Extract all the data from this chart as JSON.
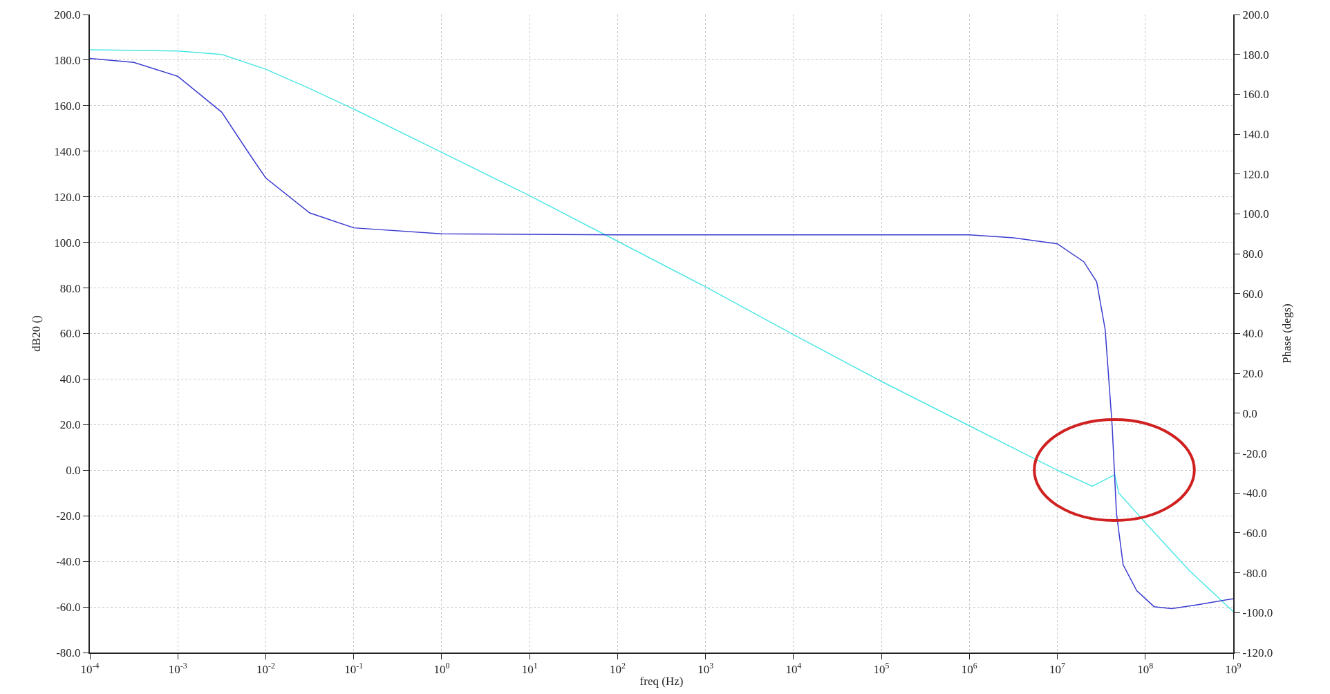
{
  "chart_data": {
    "type": "line",
    "xlabel": "freq (Hz)",
    "ylabel": "dB20 ()",
    "y2label": "Phase (degs)",
    "log": "x",
    "grid": true,
    "marker": "none",
    "line_style": "solid",
    "xlim": [
      0.0001,
      1000000000
    ],
    "xticks": [
      {
        "value": 0.0001,
        "label": "10$^{-4}$"
      },
      {
        "value": 0.001,
        "label": "10$^{-3}$"
      },
      {
        "value": 0.01,
        "label": "10$^{-2}$"
      },
      {
        "value": 0.1,
        "label": "10$^{-1}$"
      },
      {
        "value": 1,
        "label": "10$^{0}$"
      },
      {
        "value": 10,
        "label": "10$^{1}$"
      },
      {
        "value": 100,
        "label": "10$^{2}$"
      },
      {
        "value": 1000,
        "label": "10$^{3}$"
      },
      {
        "value": 10000,
        "label": "10$^{4}$"
      },
      {
        "value": 100000,
        "label": "10$^{5}$"
      },
      {
        "value": 1000000,
        "label": "10$^{6}$"
      },
      {
        "value": 10000000,
        "label": "10$^{7}$"
      },
      {
        "value": 100000000,
        "label": "10$^{8}$"
      },
      {
        "value": 1000000000,
        "label": "10$^{9}$"
      }
    ],
    "ylim": [
      -80,
      200
    ],
    "yticks": [
      {
        "value": 200,
        "label": "200.0"
      },
      {
        "value": 180,
        "label": "180.0"
      },
      {
        "value": 160,
        "label": "160.0"
      },
      {
        "value": 140,
        "label": "140.0"
      },
      {
        "value": 120,
        "label": "120.0"
      },
      {
        "value": 100,
        "label": "100.0"
      },
      {
        "value": 80,
        "label": "80.0"
      },
      {
        "value": 60,
        "label": "60.0"
      },
      {
        "value": 40,
        "label": "40.0"
      },
      {
        "value": 20,
        "label": "20.0"
      },
      {
        "value": 0,
        "label": "0.0"
      },
      {
        "value": -20,
        "label": "-20.0"
      },
      {
        "value": -40,
        "label": "-40.0"
      },
      {
        "value": -60,
        "label": "-60.0"
      },
      {
        "value": -80,
        "label": "-80.0"
      }
    ],
    "y2lim": [
      -120,
      200
    ],
    "y2ticks": [
      {
        "value": 200,
        "label": "200.0"
      },
      {
        "value": 180,
        "label": "180.0"
      },
      {
        "value": 160,
        "label": "160.0"
      },
      {
        "value": 140,
        "label": "140.0"
      },
      {
        "value": 120,
        "label": "120.0"
      },
      {
        "value": 100,
        "label": "100.0"
      },
      {
        "value": 80,
        "label": "80.0"
      },
      {
        "value": 60,
        "label": "60.0"
      },
      {
        "value": 40,
        "label": "40.0"
      },
      {
        "value": 20,
        "label": "20.0"
      },
      {
        "value": 0,
        "label": "0.0"
      },
      {
        "value": -20,
        "label": "-20.0"
      },
      {
        "value": -40,
        "label": "-40.0"
      },
      {
        "value": -60,
        "label": "-60.0"
      },
      {
        "value": -80,
        "label": "-80.0"
      },
      {
        "value": -100,
        "label": "-100.0"
      },
      {
        "value": -120,
        "label": "-120.0"
      }
    ],
    "series": [
      {
        "color": "#4ce6e6",
        "x": [
          0.0001,
          0.001,
          0.00316,
          0.01,
          0.0316,
          0.1,
          1,
          10,
          100,
          1000,
          10000.0,
          100000.0,
          1000000.0,
          10000000.0,
          25000000.0,
          40000000.0,
          45000000.0,
          50000000.0,
          100000000.0,
          316000000.0,
          1000000000.0
        ],
        "values": [
          184.5,
          184,
          182.5,
          176,
          167.5,
          158.5,
          139.5,
          120.5,
          100.5,
          80.5,
          59.5,
          39,
          19.5,
          0,
          -7,
          -3,
          -2,
          -10,
          -23,
          -44,
          -62
        ]
      },
      {
        "color": "#3a3ad0",
        "axis": "y2",
        "x": [
          0.0001,
          0.000316,
          0.001,
          0.00316,
          0.0063,
          0.01,
          0.0316,
          0.1,
          1,
          100,
          10000.0,
          1000000.0,
          3160000.0,
          10000000.0,
          20000000.0,
          28000000.0,
          35000000.0,
          42000000.0,
          47000000.0,
          56000000.0,
          80000000.0,
          126000000.0,
          200000000.0,
          400000000.0,
          1000000000.0
        ],
        "values": [
          178,
          176,
          169,
          151,
          131,
          118,
          100.5,
          93,
          90,
          89.5,
          89.5,
          89.5,
          88,
          85,
          76,
          66,
          42,
          -6,
          -50,
          -76,
          -89,
          -97,
          -98,
          -96,
          -93
        ]
      }
    ]
  }
}
